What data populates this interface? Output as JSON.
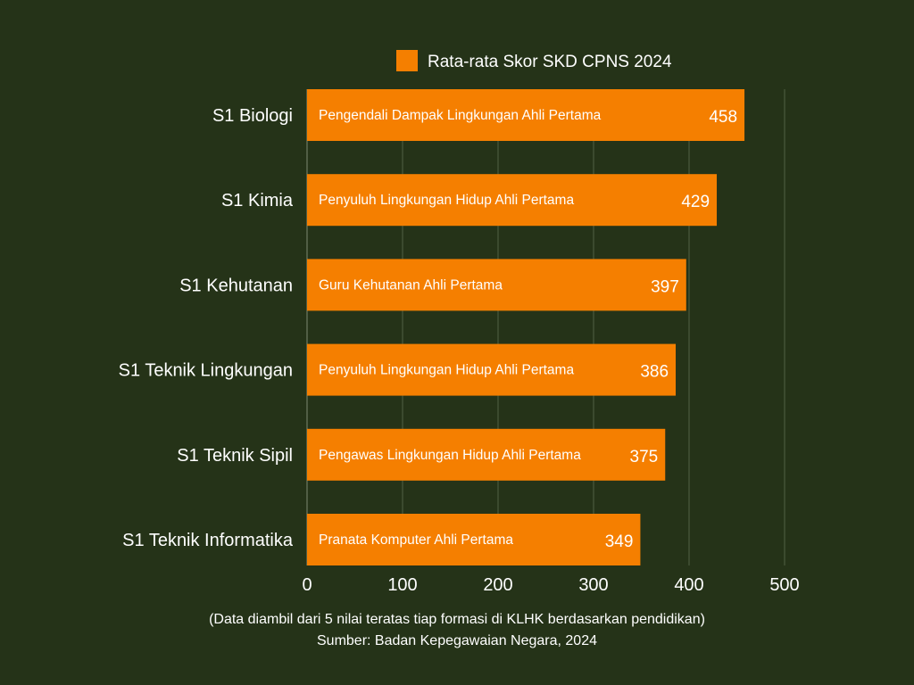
{
  "chart_data": {
    "type": "bar",
    "orientation": "horizontal",
    "legend": "Rata-rata Skor SKD CPNS 2024",
    "legend_position": "top-center",
    "categories": [
      "S1 Biologi",
      "S1 Kimia",
      "S1 Kehutanan",
      "S1 Teknik Lingkungan",
      "S1 Teknik Sipil",
      "S1 Teknik Informatika"
    ],
    "bar_labels": [
      "Pengendali Dampak Lingkungan Ahli Pertama",
      "Penyuluh Lingkungan Hidup Ahli Pertama",
      "Guru Kehutanan Ahli Pertama",
      "Penyuluh Lingkungan Hidup Ahli Pertama",
      "Pengawas Lingkungan Hidup Ahli Pertama",
      "Pranata Komputer Ahli Pertama"
    ],
    "values": [
      458,
      429,
      397,
      386,
      375,
      349
    ],
    "xlim": [
      0,
      500
    ],
    "xticks": [
      0,
      100,
      200,
      300,
      400,
      500
    ],
    "grid": true,
    "bar_color": "#f57f00"
  },
  "footer": {
    "note": "(Data diambil dari 5 nilai teratas tiap formasi di KLHK berdasarkan pendidikan)",
    "source": "Sumber: Badan Kepegawaian Negara, 2024"
  }
}
